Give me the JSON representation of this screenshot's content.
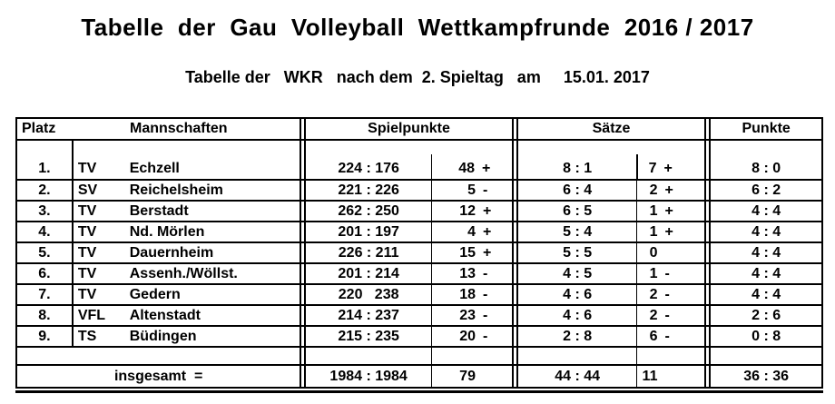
{
  "page": {
    "title": "Tabelle  der  Gau  Volleyball  Wettkampfrunde  2016 / 2017",
    "subtitle": "Tabelle der   WKR   nach dem  2. Spieltag   am     15.01. 2017"
  },
  "table": {
    "headers": {
      "platz": "Platz",
      "mannschaften": "Mannschaften",
      "spielpunkte": "Spielpunkte",
      "saetze": "Sätze",
      "punkte": "Punkte"
    },
    "rows": [
      {
        "platz": "1.",
        "abbr": "TV",
        "name": "Echzell",
        "sp_score": "224 : 176",
        "sp_diff": "48",
        "sp_sign": "+",
        "sz_score": "8 : 1",
        "sz_diff": "7",
        "sz_sign": "+",
        "punkte": "8 : 0"
      },
      {
        "platz": "2.",
        "abbr": "SV",
        "name": "Reichelsheim",
        "sp_score": "221 : 226",
        "sp_diff": "5",
        "sp_sign": "-",
        "sz_score": "6 : 4",
        "sz_diff": "2",
        "sz_sign": "+",
        "punkte": "6 : 2"
      },
      {
        "platz": "3.",
        "abbr": "TV",
        "name": "Berstadt",
        "sp_score": "262 : 250",
        "sp_diff": "12",
        "sp_sign": "+",
        "sz_score": "6 : 5",
        "sz_diff": "1",
        "sz_sign": "+",
        "punkte": "4 : 4"
      },
      {
        "platz": "4.",
        "abbr": "TV",
        "name": "Nd. Mörlen",
        "sp_score": "201 : 197",
        "sp_diff": "4",
        "sp_sign": "+",
        "sz_score": "5 : 4",
        "sz_diff": "1",
        "sz_sign": "+",
        "punkte": "4 : 4"
      },
      {
        "platz": "5.",
        "abbr": "TV",
        "name": "Dauernheim",
        "sp_score": "226 : 211",
        "sp_diff": "15",
        "sp_sign": "+",
        "sz_score": "5 : 5",
        "sz_diff": "0",
        "sz_sign": "",
        "punkte": "4 : 4"
      },
      {
        "platz": "6.",
        "abbr": "TV",
        "name": "Assenh./Wöllst.",
        "sp_score": "201 : 214",
        "sp_diff": "13",
        "sp_sign": "-",
        "sz_score": "4 : 5",
        "sz_diff": "1",
        "sz_sign": "-",
        "punkte": "4 : 4"
      },
      {
        "platz": "7.",
        "abbr": "TV",
        "name": "Gedern",
        "sp_score": "220   238",
        "sp_diff": "18",
        "sp_sign": "-",
        "sz_score": "4 : 6",
        "sz_diff": "2",
        "sz_sign": "-",
        "punkte": "4 : 4"
      },
      {
        "platz": "8.",
        "abbr": "VFL",
        "name": "Altenstadt",
        "sp_score": "214 : 237",
        "sp_diff": "23",
        "sp_sign": "-",
        "sz_score": "4 : 6",
        "sz_diff": "2",
        "sz_sign": "-",
        "punkte": "2 : 6"
      },
      {
        "platz": "9.",
        "abbr": "TS",
        "name": "Büdingen",
        "sp_score": "215 : 235",
        "sp_diff": "20",
        "sp_sign": "-",
        "sz_score": "2 : 8",
        "sz_diff": "6",
        "sz_sign": "-",
        "punkte": "0 : 8"
      }
    ],
    "total": {
      "label": "insgesamt  =",
      "sp_score": "1984 : 1984",
      "sp_diff": "79",
      "sp_sign": "",
      "sz_score": "44 : 44",
      "sz_diff": "11",
      "sz_sign": "",
      "punkte": "36 : 36"
    }
  }
}
